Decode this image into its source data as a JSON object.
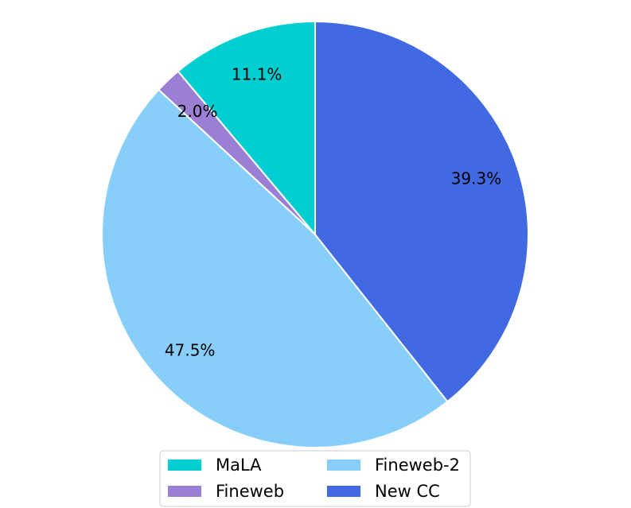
{
  "chart_data": {
    "type": "pie",
    "categories": [
      "MaLA",
      "Fineweb",
      "Fineweb-2",
      "New CC"
    ],
    "values": [
      11.1,
      2.0,
      47.5,
      39.3
    ],
    "labels": [
      "11.1%",
      "2.0%",
      "47.5%",
      "39.3%"
    ],
    "colors": [
      "#00CED1",
      "#9B7FD4",
      "#87CEFA",
      "#4169E1"
    ],
    "title": "",
    "start_angle_deg": 90,
    "direction": "counterclockwise",
    "legend": {
      "placement": "bottom-center",
      "columns": 2,
      "entries": [
        "MaLA",
        "Fineweb",
        "Fineweb-2",
        "New CC"
      ]
    }
  }
}
